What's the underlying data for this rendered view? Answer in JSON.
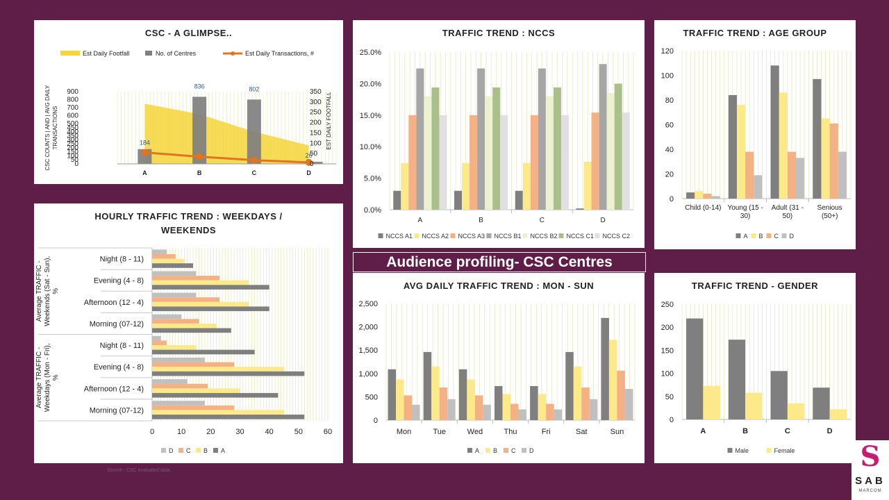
{
  "slide": {
    "banner": "Audience profiling- CSC Centres",
    "source": "Source : CSC evaluated data",
    "logo": {
      "mark": "S",
      "name": "SAB",
      "sub": "MARCOM",
      "accent": "#c61d6e"
    },
    "background": "#5e1e48"
  },
  "chart_data": [
    {
      "id": "glimpse",
      "type": "combo",
      "title": "CSC - A GLIMPSE..",
      "categories": [
        "A",
        "B",
        "C",
        "D"
      ],
      "series": [
        {
          "name": "Est Daily Footfall",
          "kind": "area",
          "axis": "left",
          "color": "#f5d53a",
          "values": [
            750,
            620,
            400,
            230
          ]
        },
        {
          "name": "No. of Centres",
          "kind": "bar",
          "axis": "left",
          "color": "#7f7f7f",
          "values": [
            184,
            836,
            802,
            26
          ],
          "labels": [
            "184",
            "836",
            "802",
            "26"
          ]
        },
        {
          "name": "Est Daily Transactions, #",
          "kind": "line",
          "axis": "right",
          "color": "#e3731c",
          "values": [
            55,
            35,
            18,
            7
          ]
        }
      ],
      "ylabel": "CSC COUNTS | AND | AVG DAILY TRANSACTIONS",
      "y2label": "EST DAILY FOOTFALL",
      "ylim": [
        0,
        900
      ],
      "y2lim": [
        0,
        350
      ],
      "yticks": [
        0,
        50,
        100,
        150,
        200,
        250,
        300,
        350,
        400,
        450,
        500,
        600,
        700,
        800,
        900
      ],
      "y2ticks": [
        0,
        50,
        100,
        150,
        200,
        250,
        300,
        350
      ],
      "legend": "top"
    },
    {
      "id": "nccs",
      "type": "bar",
      "title": "TRAFFIC TREND : NCCS",
      "categories": [
        "A",
        "B",
        "C",
        "D"
      ],
      "series": [
        {
          "name": "NCCS A1",
          "color": "#7f7f7f",
          "values": [
            3.0,
            3.0,
            3.0,
            0.2
          ]
        },
        {
          "name": "NCCS A2",
          "color": "#fbe98a",
          "values": [
            7.4,
            7.4,
            7.4,
            7.6
          ]
        },
        {
          "name": "NCCS A3",
          "color": "#f4b183",
          "values": [
            15.0,
            15.0,
            15.0,
            15.4
          ]
        },
        {
          "name": "NCCS B1",
          "color": "#a6a6a6",
          "values": [
            22.4,
            22.4,
            22.4,
            23.1
          ]
        },
        {
          "name": "NCCS B2",
          "color": "#ecf1cf",
          "values": [
            18.0,
            18.0,
            18.0,
            18.5
          ]
        },
        {
          "name": "NCCS C1",
          "color": "#a9c08a",
          "values": [
            19.4,
            19.4,
            19.4,
            20.0
          ]
        },
        {
          "name": "NCCS C2",
          "color": "#e0e0e0",
          "values": [
            15.0,
            15.0,
            15.0,
            15.4
          ]
        }
      ],
      "ylim": [
        0,
        25
      ],
      "yticks": [
        "0.0%",
        "5.0%",
        "10.0%",
        "15.0%",
        "20.0%",
        "25.0%"
      ],
      "legend": "bottom"
    },
    {
      "id": "age",
      "type": "bar",
      "title": "TRAFFIC TREND : AGE GROUP",
      "categories": [
        "Child (0-14)",
        "Young (15 - 30)",
        "Adult (31 - 50)",
        "Senious (50+)"
      ],
      "series": [
        {
          "name": "A",
          "color": "#7f7f7f",
          "values": [
            5,
            84,
            108,
            97
          ]
        },
        {
          "name": "B",
          "color": "#fbe98a",
          "values": [
            6,
            76,
            86,
            65
          ]
        },
        {
          "name": "C",
          "color": "#f4b183",
          "values": [
            4,
            38,
            38,
            61
          ]
        },
        {
          "name": "D",
          "color": "#c0c0c0",
          "values": [
            2,
            19,
            33,
            38
          ]
        }
      ],
      "ylim": [
        0,
        120
      ],
      "yticks": [
        "0",
        "20",
        "40",
        "60",
        "80",
        "100",
        "120"
      ],
      "legend": "bottom"
    },
    {
      "id": "hourly",
      "type": "hbar",
      "title": "HOURLY TRAFFIC TREND : WEEKDAYS / WEEKENDS",
      "groups": [
        {
          "label": "Average TRAFFIC - Weekends (Sat - Sun), %",
          "categories": [
            "Night (8 - 11)",
            "Evening (4 - 8)",
            "Afternoon (12 - 4)",
            "Morning (07-12)"
          ]
        },
        {
          "label": "Average TRAFFIC - Weekdays (Mon - Fri), %",
          "categories": [
            "Night (8 - 11)",
            "Evening (4 - 8)",
            "Afternoon (12 - 4)",
            "Morning (07-12)"
          ]
        }
      ],
      "series": [
        {
          "name": "D",
          "color": "#c0c0c0",
          "values": [
            5,
            15,
            15,
            10,
            3,
            18,
            12,
            18
          ]
        },
        {
          "name": "C",
          "color": "#f4b183",
          "values": [
            8,
            23,
            23,
            16,
            5,
            28,
            19,
            28
          ]
        },
        {
          "name": "B",
          "color": "#fbe98a",
          "values": [
            11,
            33,
            33,
            22,
            15,
            45,
            30,
            45
          ]
        },
        {
          "name": "A",
          "color": "#7f7f7f",
          "values": [
            14,
            40,
            40,
            27,
            35,
            52,
            43,
            52
          ]
        }
      ],
      "xlim": [
        0,
        60
      ],
      "xticks": [
        "0",
        "10",
        "20",
        "30",
        "40",
        "50",
        "60"
      ],
      "legend": "bottom"
    },
    {
      "id": "weekly",
      "type": "bar",
      "title": "AVG DAILY TRAFFIC TREND : MON - SUN",
      "categories": [
        "Mon",
        "Tue",
        "Wed",
        "Thu",
        "Fri",
        "Sat",
        "Sun"
      ],
      "series": [
        {
          "name": "A",
          "color": "#7f7f7f",
          "values": [
            1090,
            1460,
            1090,
            730,
            730,
            1460,
            2190
          ]
        },
        {
          "name": "B",
          "color": "#fbe98a",
          "values": [
            870,
            1150,
            870,
            560,
            560,
            1150,
            1720
          ]
        },
        {
          "name": "C",
          "color": "#f4b183",
          "values": [
            530,
            700,
            530,
            350,
            350,
            700,
            1060
          ]
        },
        {
          "name": "D",
          "color": "#c0c0c0",
          "values": [
            330,
            450,
            330,
            230,
            230,
            450,
            670
          ]
        }
      ],
      "ylim": [
        0,
        2500
      ],
      "yticks": [
        "0",
        "500",
        "1,000",
        "1,500",
        "2,000",
        "2,500"
      ],
      "legend": "bottom"
    },
    {
      "id": "gender",
      "type": "bar",
      "title": "TRAFFIC TREND - GENDER",
      "categories": [
        "A",
        "B",
        "C",
        "D"
      ],
      "series": [
        {
          "name": "Male",
          "color": "#7f7f7f",
          "values": [
            219,
            173,
            105,
            69
          ]
        },
        {
          "name": "Female",
          "color": "#fbe98a",
          "values": [
            73,
            58,
            35,
            22
          ]
        }
      ],
      "ylim": [
        0,
        250
      ],
      "yticks": [
        "0",
        "50",
        "100",
        "150",
        "200",
        "250"
      ],
      "legend": "bottom"
    }
  ]
}
